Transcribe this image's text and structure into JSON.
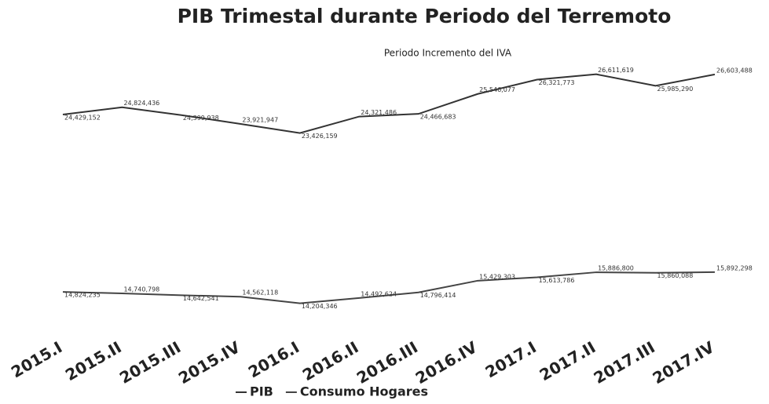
{
  "chart_data": {
    "type": "line",
    "title": "PIB Trimestal durante Periodo del Terremoto",
    "annotation": "Periodo Incremento del IVA",
    "categories": [
      "2015.I",
      "2015.II",
      "2015.III",
      "2015.IV",
      "2016.I",
      "2016.II",
      "2016.III",
      "2016.IV",
      "2017.I",
      "2017.II",
      "2017.III",
      "2017.IV"
    ],
    "series": [
      {
        "name": "PIB",
        "color": "#333333",
        "values": [
          24429152,
          24824436,
          24399938,
          23921947,
          23426159,
          24321486,
          24466683,
          25546077,
          26321773,
          26611619,
          25985290,
          26603488
        ],
        "value_labels": [
          "24,429,152",
          "24,824,436",
          "24,399,938",
          "23,921,947",
          "23,426,159",
          "24,321,486",
          "24,466,683",
          "25,546,077",
          "26,321,773",
          "26,611,619",
          "25,985,290",
          "26,603,488"
        ]
      },
      {
        "name": "Consumo Hogares",
        "color": "#444444",
        "values": [
          14824235,
          14740798,
          14642541,
          14562118,
          14204346,
          14492624,
          14796414,
          15429303,
          15613786,
          15886800,
          15860088,
          15892298
        ],
        "value_labels": [
          "14,824,235",
          "14,740,798",
          "14,642,541",
          "14,562,118",
          "14,204,346",
          "14,492,624",
          "14,796,414",
          "15,429,303",
          "15,613,786",
          "15,886,800",
          "15,860,088",
          "15,892,298"
        ]
      }
    ],
    "ylim": [
      13000000,
      28000000
    ],
    "legend": "bottom"
  }
}
